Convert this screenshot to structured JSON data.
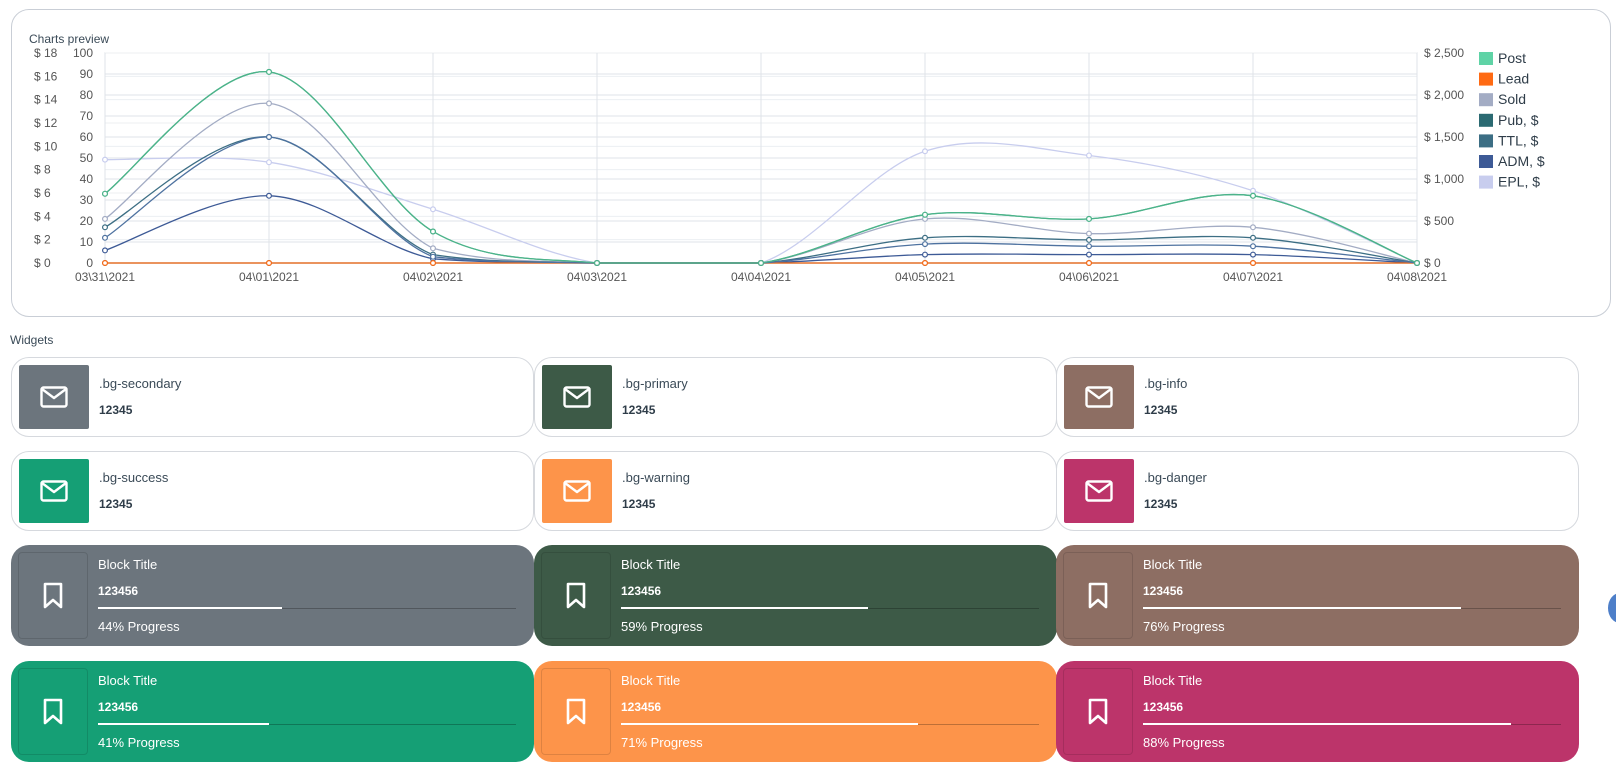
{
  "chart_title": "Charts preview",
  "widgets_title": "Widgets",
  "chart_data": {
    "type": "line",
    "x": [
      "03\\31\\2021",
      "04\\01\\2021",
      "04\\02\\2021",
      "04\\03\\2021",
      "04\\04\\2021",
      "04\\05\\2021",
      "04\\06\\2021",
      "04\\07\\2021",
      "04\\08\\2021"
    ],
    "left_money_ticks": [
      "$ 0",
      "$ 2",
      "$ 4",
      "$ 6",
      "$ 8",
      "$ 10",
      "$ 12",
      "$ 14",
      "$ 16",
      "$ 18"
    ],
    "left_ylim": [
      0,
      100
    ],
    "left_ticks": [
      0,
      10,
      20,
      30,
      40,
      50,
      60,
      70,
      80,
      90,
      100
    ],
    "right_ylim": [
      0,
      2500
    ],
    "right_ticks": [
      "$ 0",
      "$ 500",
      "$ 1,000",
      "$ 1,500",
      "$ 2,000",
      "$ 2,500"
    ],
    "grid": true,
    "legend_position": "right",
    "series": [
      {
        "name": "Post",
        "color": "#4cb38a",
        "axis": "left",
        "values": [
          33,
          91,
          15,
          0,
          0,
          23,
          21,
          32,
          0
        ]
      },
      {
        "name": "Lead",
        "color": "#ff6a13",
        "axis": "left",
        "values": [
          0,
          0,
          0,
          0,
          0,
          0,
          0,
          0,
          0
        ]
      },
      {
        "name": "Sold",
        "color": "#a3acc4",
        "axis": "left",
        "values": [
          21,
          76,
          7,
          0,
          0,
          21,
          14,
          17,
          0
        ]
      },
      {
        "name": "Pub, $",
        "color": "#2b6a72",
        "axis": "left",
        "values": [
          0,
          0,
          0,
          0,
          0,
          0,
          0,
          0,
          0
        ]
      },
      {
        "name": "TTL, $",
        "color": "#3c6e84",
        "axis": "left",
        "values": [
          17,
          60,
          4,
          0,
          0,
          12,
          11,
          12,
          0
        ]
      },
      {
        "name": "ADM, $",
        "color": "#3d5a96",
        "axis": "left",
        "values": [
          6,
          32,
          2,
          0,
          0,
          4,
          4,
          4,
          0
        ]
      },
      {
        "name": "EPL, $",
        "color": "#c8cdee",
        "axis": "right",
        "values": [
          1230,
          1200,
          640,
          0,
          0,
          1330,
          1280,
          860,
          0
        ]
      }
    ],
    "extra_series": [
      {
        "color": "#4e72a0",
        "axis": "left",
        "values": [
          12,
          60,
          3,
          0,
          0,
          9,
          8,
          8,
          0
        ]
      }
    ],
    "legend_colors": [
      "#5fd3a6",
      "#ff6a13",
      "#a3acc4",
      "#2b6a72",
      "#3c6e84",
      "#3d5a96",
      "#c8cdee"
    ]
  },
  "widgets": [
    {
      "label": ".bg-secondary",
      "value": "12345",
      "color": "#6c757d",
      "icon": "envelope-icon"
    },
    {
      "label": ".bg-primary",
      "value": "12345",
      "color": "#3d5a47",
      "icon": "envelope-icon"
    },
    {
      "label": ".bg-info",
      "value": "12345",
      "color": "#8d6e63",
      "icon": "envelope-icon"
    },
    {
      "label": ".bg-success",
      "value": "12345",
      "color": "#159f75",
      "icon": "envelope-icon"
    },
    {
      "label": ".bg-warning",
      "value": "12345",
      "color": "#fd944a",
      "icon": "envelope-icon"
    },
    {
      "label": ".bg-danger",
      "value": "12345",
      "color": "#bc346a",
      "icon": "envelope-icon"
    }
  ],
  "blocks": [
    {
      "title": "Block Title",
      "value": "123456",
      "progress": 44,
      "progress_text": "44% Progress",
      "color": "#6c757d",
      "icon": "bookmark-icon"
    },
    {
      "title": "Block Title",
      "value": "123456",
      "progress": 59,
      "progress_text": "59% Progress",
      "color": "#3d5a47",
      "icon": "bookmark-icon"
    },
    {
      "title": "Block Title",
      "value": "123456",
      "progress": 76,
      "progress_text": "76% Progress",
      "color": "#8d6e63",
      "icon": "bookmark-icon"
    },
    {
      "title": "Block Title",
      "value": "123456",
      "progress": 41,
      "progress_text": "41% Progress",
      "color": "#159f75",
      "icon": "bookmark-icon"
    },
    {
      "title": "Block Title",
      "value": "123456",
      "progress": 71,
      "progress_text": "71% Progress",
      "color": "#fd944a",
      "icon": "bookmark-icon"
    },
    {
      "title": "Block Title",
      "value": "123456",
      "progress": 88,
      "progress_text": "88% Progress",
      "color": "#bc346a",
      "icon": "bookmark-icon"
    }
  ]
}
